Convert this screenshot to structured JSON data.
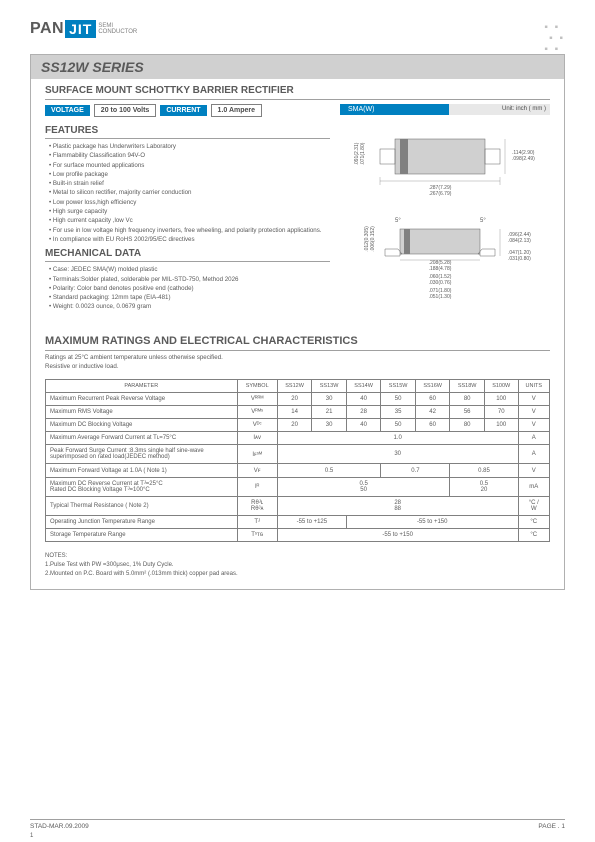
{
  "logo": {
    "pan": "PAN",
    "jit": "JIT",
    "sub1": "SEMI",
    "sub2": "CONDUCTOR"
  },
  "series": "SS12W SERIES",
  "subtitle": "SURFACE  MOUNT SCHOTTKY BARRIER RECTIFIER",
  "specs": {
    "voltage_label": "VOLTAGE",
    "voltage_value": "20 to 100 Volts",
    "current_label": "CURRENT",
    "current_value": "1.0 Ampere"
  },
  "package": {
    "label": "SMA(W)",
    "unit": "Unit: inch ( mm )"
  },
  "diagram": {
    "top_view": {
      "width_label": ".287(7.29)",
      "width_label2": ".267(6.79)",
      "height_label": ".114(2.90)",
      "height_label2": ".098(2.49)",
      "pad_label": ".091(2.31)",
      "pad_label2": ".071(1.80)",
      "spacing": ".181(4.60)",
      "spacing2": ".157(4.00)"
    },
    "side_view": {
      "body_w": ".208(5.28)",
      "body_w2": ".188(4.78)",
      "lead": ".012(0.305)",
      "lead2": ".006(0.152)",
      "height": ".096(2.44)",
      "height2": ".084(2.13)",
      "lead_h": ".047(1.20)",
      "lead_h2": ".031(0.80)",
      "lead_ext": ".060(1.52)",
      "lead_ext2": ".030(0.76)",
      "total": ".071(1.80)",
      "total2": ".051(1.30)"
    },
    "colors": {
      "body": "#d0d0d0",
      "band": "#808080",
      "line": "#606060",
      "text": "#5a5a5a"
    }
  },
  "features": {
    "title": "FEATURES",
    "items": [
      "Plastic package has Underwriters Laboratory",
      "Flammability Classification 94V-O",
      "For surface mounted applications",
      "Low profile package",
      "Built-in strain relief",
      "Metal to silicon rectifier,  majority carrier conduction",
      "Low power loss,high efficiency",
      "High surge capacity",
      "High current capacity ,low Vᴄ",
      "For use in low voltage high frequency inverters, free wheeling, and polarity protection applications.",
      "In compliance with EU RoHS 2002/95/EC directives"
    ]
  },
  "mechanical": {
    "title": "MECHANICAL DATA",
    "items": [
      "Case: JEDEC SMA(W) molded plastic",
      "Terminals:Solder plated, solderable per MIL-STD-750, Method 2026",
      "Polarity: Color band denotes positive end (cathode)",
      "Standard packaging: 12mm tape (EIA-481)",
      "Weight: 0.0023 ounce, 0.0679 gram"
    ]
  },
  "ratings": {
    "title": "MAXIMUM RATINGS AND ELECTRICAL CHARACTERISTICS",
    "sub1": "Ratings at 25°C ambient temperature unless otherwise specified.",
    "sub2": "Resistive or inductive load.",
    "headers": [
      "PARAMETER",
      "SYMBOL",
      "SS12W",
      "SS13W",
      "SS14W",
      "SS15W",
      "SS16W",
      "SS18W",
      "S100W",
      "UNITS"
    ],
    "rows": [
      {
        "param": "Maximum Recurrent Peak Reverse Voltage",
        "symbol": "Vᴿᴿᴹ",
        "vals": [
          "20",
          "30",
          "40",
          "50",
          "60",
          "80",
          "100"
        ],
        "unit": "V"
      },
      {
        "param": "Maximum RMS Voltage",
        "symbol": "Vᴿᴹˢ",
        "vals": [
          "14",
          "21",
          "28",
          "35",
          "42",
          "56",
          "70"
        ],
        "unit": "V"
      },
      {
        "param": "Maximum DC Blocking Voltage",
        "symbol": "Vᴰᶜ",
        "vals": [
          "20",
          "30",
          "40",
          "50",
          "60",
          "80",
          "100"
        ],
        "unit": "V"
      },
      {
        "param": "Maximum Average Forward  Current at Tʟ=75°C",
        "symbol": "Iᴀᴠ",
        "span": "1.0",
        "unit": "A"
      },
      {
        "param": "Peak Forward Surge Current :8.3ms single half sine-wave superimposed on rated load(JEDEC method)",
        "symbol": "Iꜰˢᴹ",
        "span": "30",
        "unit": "A"
      },
      {
        "param": "Maximum Forward Voltage at 1.0A  ( Note 1)",
        "symbol": "Vꜰ",
        "groups": [
          {
            "span": 3,
            "val": "0.5"
          },
          {
            "span": 2,
            "val": "0.7"
          },
          {
            "span": 2,
            "val": "0.85"
          }
        ],
        "unit": "V"
      },
      {
        "param": "Maximum DC Reverse Current at Tᴶ=25°C\nRated DC Blocking Voltage Tᴶ=100°C",
        "symbol": "Iᴿ",
        "groups": [
          {
            "span": 5,
            "val": "0.5\n50"
          },
          {
            "span": 2,
            "val": "0.5\n20"
          }
        ],
        "unit": "mA"
      },
      {
        "param": "Typical Thermal Resistance ( Note 2)",
        "symbol": "Rθᴶʟ\nRθᴶᴀ",
        "span": "28\n88",
        "unit": "°C /\nW"
      },
      {
        "param": "Operating Junction Temperature Range",
        "symbol": "Tᴶ",
        "groups": [
          {
            "span": 2,
            "val": "-55 to +125"
          },
          {
            "span": 5,
            "val": "-55 to +150"
          }
        ],
        "unit": "°C"
      },
      {
        "param": "Storage Temperature Range",
        "symbol": "Tˢᴛɢ",
        "span": "-55 to +150",
        "unit": "°C"
      }
    ]
  },
  "notes": {
    "title": "NOTES:",
    "items": [
      "1.Pulse Test with PW =300μsec, 1% Duty Cycle.",
      "2.Mounted on P.C. Board with 5.0mm²  (.013mm thick) copper pad areas."
    ]
  },
  "footer": {
    "left": "STAD-MAR.09.2009",
    "right": "PAGE .  1",
    "pagenum": "1"
  }
}
